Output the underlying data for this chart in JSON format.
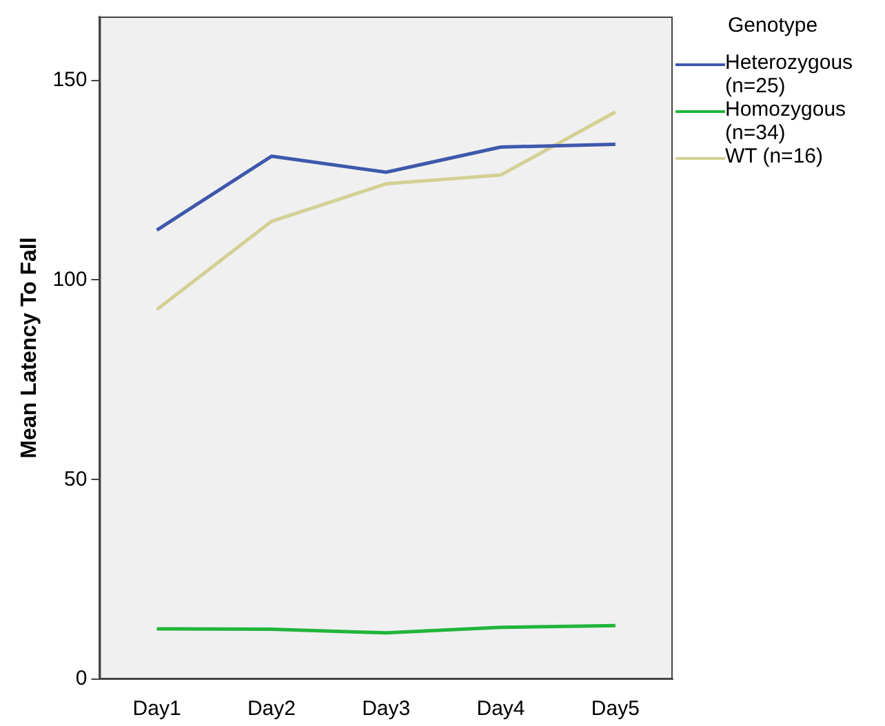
{
  "chart_data": {
    "type": "line",
    "ylabel": "Mean Latency To Fall",
    "legend_title": "Genotype",
    "legend": "right",
    "grid": false,
    "marker": "none",
    "categories": [
      "Day1",
      "Day2",
      "Day3",
      "Day4",
      "Day5"
    ],
    "ylim": [
      0,
      166
    ],
    "yticks": [
      0,
      50,
      100,
      150
    ],
    "series": [
      {
        "name": "Heterozygous (n=25)",
        "color": "#3e58ac",
        "values": [
          112.5,
          131,
          127,
          133.3,
          134
        ]
      },
      {
        "name": "Homozygous (n=34)",
        "color": "#21b53a",
        "values": [
          12.6,
          12.5,
          11.6,
          13,
          13.4
        ]
      },
      {
        "name": "WT (n=16)",
        "color": "#d4d094",
        "values": [
          92.6,
          114.7,
          124.1,
          126.3,
          142.1
        ]
      }
    ]
  }
}
